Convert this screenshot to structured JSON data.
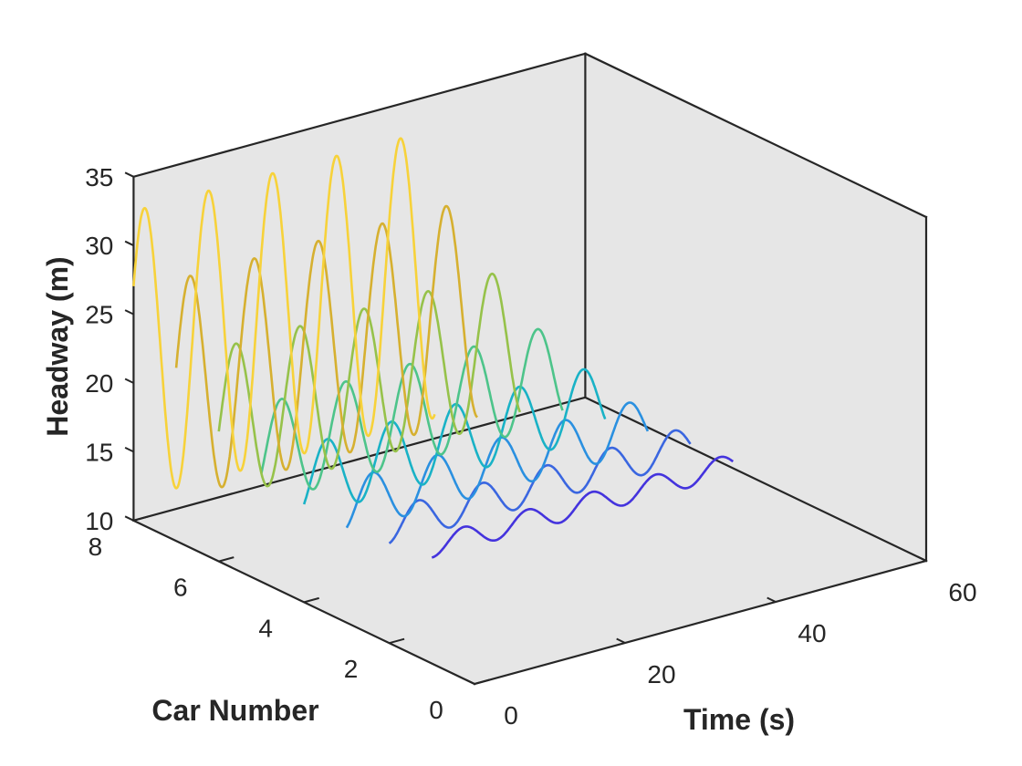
{
  "chart_data": {
    "type": "line",
    "view": "3d",
    "title": "",
    "xlabel": "Time (s)",
    "ylabel": "Car Number",
    "zlabel": "Headway (m)",
    "xlim": [
      0,
      60
    ],
    "ylim": [
      0,
      8
    ],
    "zlim": [
      10,
      35
    ],
    "xticks": [
      "0",
      "20",
      "40",
      "60"
    ],
    "yticks": [
      "0",
      "2",
      "4",
      "6",
      "8"
    ],
    "zticks": [
      "10",
      "15",
      "20",
      "25",
      "30",
      "35"
    ],
    "grid": false,
    "pane_color": "#e6e6e6",
    "axis_color": "#262626",
    "series_model": "headway(t) = mean + amplitude * sin(2*pi*t/period + phase), t in seconds over [0, 40]",
    "series": [
      {
        "car": 1,
        "t_range": [
          0,
          40
        ],
        "mean": 18.5,
        "amplitude": 0.8,
        "period": 8.5,
        "phase": -1.57,
        "color": "#4433dd"
      },
      {
        "car": 2,
        "t_range": [
          0,
          40
        ],
        "mean": 18.5,
        "amplitude": 1.3,
        "period": 8.5,
        "phase": -1.3,
        "color": "#3a66e0"
      },
      {
        "car": 3,
        "t_range": [
          0,
          40
        ],
        "mean": 18.5,
        "amplitude": 1.9,
        "period": 8.5,
        "phase": -1.0,
        "color": "#2a90e0"
      },
      {
        "car": 4,
        "t_range": [
          0,
          40
        ],
        "mean": 18.8,
        "amplitude": 2.6,
        "period": 8.5,
        "phase": -0.7,
        "color": "#19b2c6"
      },
      {
        "car": 5,
        "t_range": [
          0,
          40
        ],
        "mean": 19.3,
        "amplitude": 3.6,
        "period": 8.5,
        "phase": -0.4,
        "color": "#4dc48a"
      },
      {
        "car": 6,
        "t_range": [
          0,
          40
        ],
        "mean": 20.0,
        "amplitude": 5.5,
        "period": 8.5,
        "phase": -0.1,
        "color": "#96c24a"
      },
      {
        "car": 7,
        "t_range": [
          0,
          40
        ],
        "mean": 21.0,
        "amplitude": 8.0,
        "period": 8.5,
        "phase": 0.2,
        "color": "#d6b030"
      },
      {
        "car": 8,
        "t_range": [
          0,
          40
        ],
        "mean": 22.0,
        "amplitude": 10.5,
        "period": 8.5,
        "phase": 0.5,
        "color": "#f7d23a"
      }
    ]
  }
}
